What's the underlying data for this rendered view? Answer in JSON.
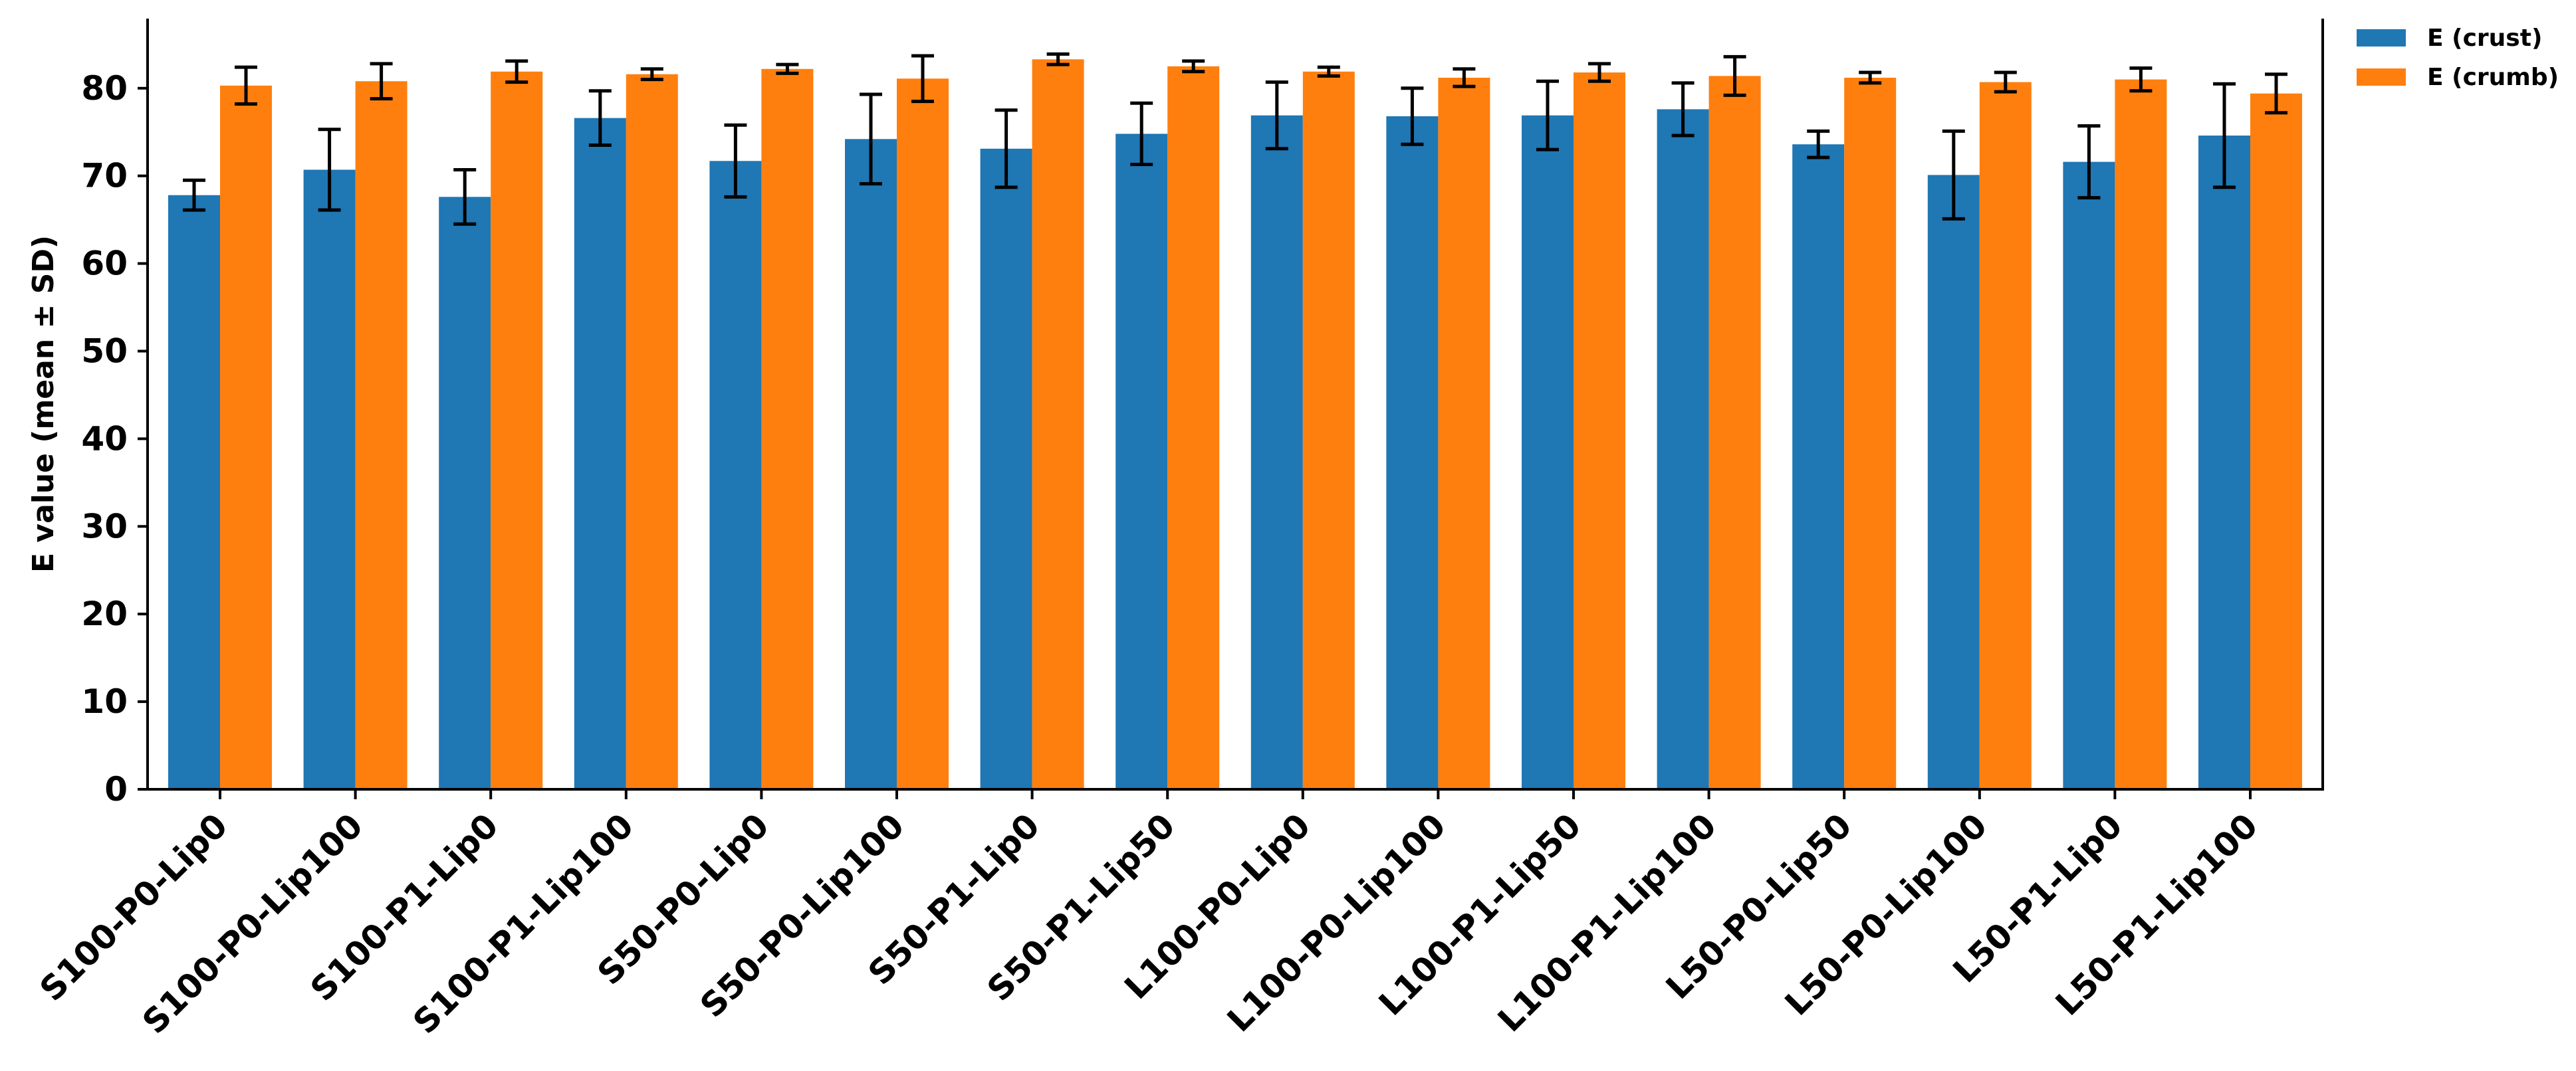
{
  "chart_data": {
    "type": "bar",
    "title": "",
    "xlabel": "",
    "ylabel": "E value (mean ± SD)",
    "ylim": [
      0,
      88
    ],
    "yticks": [
      0,
      10,
      20,
      30,
      40,
      50,
      60,
      70,
      80
    ],
    "grid": false,
    "legend_position": "top-right",
    "categories": [
      "S100-P0-Lip0",
      "S100-P0-Lip100",
      "S100-P1-Lip0",
      "S100-P1-Lip100",
      "S50-P0-Lip0",
      "S50-P0-Lip100",
      "S50-P1-Lip0",
      "S50-P1-Lip50",
      "L100-P0-Lip0",
      "L100-P0-Lip100",
      "L100-P1-Lip50",
      "L100-P1-Lip100",
      "L50-P0-Lip50",
      "L50-P0-Lip100",
      "L50-P1-Lip0",
      "L50-P1-Lip100"
    ],
    "series": [
      {
        "name": "E (crust)",
        "color": "#1f77b4",
        "values": [
          67.8,
          70.7,
          67.6,
          76.6,
          71.7,
          74.2,
          73.1,
          74.8,
          76.9,
          76.8,
          76.9,
          77.6,
          73.6,
          70.1,
          71.6,
          74.6
        ],
        "errors": [
          1.7,
          4.6,
          3.1,
          3.1,
          4.1,
          5.1,
          4.4,
          3.5,
          3.8,
          3.2,
          3.9,
          3.0,
          1.5,
          5.0,
          4.1,
          5.9
        ]
      },
      {
        "name": "E (crumb)",
        "color": "#ff7f0e",
        "values": [
          80.3,
          80.8,
          81.9,
          81.6,
          82.2,
          81.1,
          83.3,
          82.5,
          81.9,
          81.2,
          81.8,
          81.4,
          81.2,
          80.7,
          81.0,
          79.4
        ],
        "errors": [
          2.1,
          2.0,
          1.2,
          0.6,
          0.5,
          2.6,
          0.6,
          0.6,
          0.5,
          1.0,
          1.0,
          2.2,
          0.6,
          1.1,
          1.3,
          2.2
        ]
      }
    ]
  }
}
